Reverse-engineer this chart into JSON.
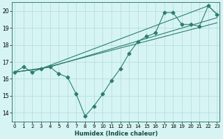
{
  "title": "",
  "xlabel": "Humidex (Indice chaleur)",
  "bg_color": "#d6f4f4",
  "line_color": "#2d7d6e",
  "grid_color": "#b8dede",
  "series_main": [
    [
      0,
      16.4
    ],
    [
      1,
      16.7
    ],
    [
      2,
      16.4
    ],
    [
      3,
      16.6
    ],
    [
      4,
      16.7
    ],
    [
      5,
      16.3
    ],
    [
      6,
      16.1
    ],
    [
      7,
      15.1
    ],
    [
      8,
      13.8
    ],
    [
      9,
      14.4
    ],
    [
      10,
      15.1
    ],
    [
      11,
      15.9
    ],
    [
      12,
      16.6
    ],
    [
      13,
      17.5
    ],
    [
      14,
      18.2
    ],
    [
      15,
      18.5
    ],
    [
      16,
      18.7
    ],
    [
      17,
      19.9
    ],
    [
      18,
      19.9
    ],
    [
      19,
      19.2
    ],
    [
      20,
      19.2
    ],
    [
      21,
      19.1
    ],
    [
      22,
      20.3
    ],
    [
      23,
      19.8
    ]
  ],
  "series_line1": [
    [
      0,
      16.4
    ],
    [
      3,
      16.6
    ],
    [
      23,
      19.3
    ]
  ],
  "series_line2": [
    [
      0,
      16.4
    ],
    [
      4,
      16.7
    ],
    [
      23,
      19.6
    ]
  ],
  "series_line3": [
    [
      0,
      16.4
    ],
    [
      3,
      16.6
    ],
    [
      22,
      20.3
    ],
    [
      23,
      19.8
    ]
  ],
  "xlim": [
    -0.3,
    23.3
  ],
  "ylim": [
    13.5,
    20.5
  ],
  "yticks": [
    14,
    15,
    16,
    17,
    18,
    19,
    20
  ],
  "xticks": [
    0,
    1,
    2,
    3,
    4,
    5,
    6,
    7,
    8,
    9,
    10,
    11,
    12,
    13,
    14,
    15,
    16,
    17,
    18,
    19,
    20,
    21,
    22,
    23
  ]
}
